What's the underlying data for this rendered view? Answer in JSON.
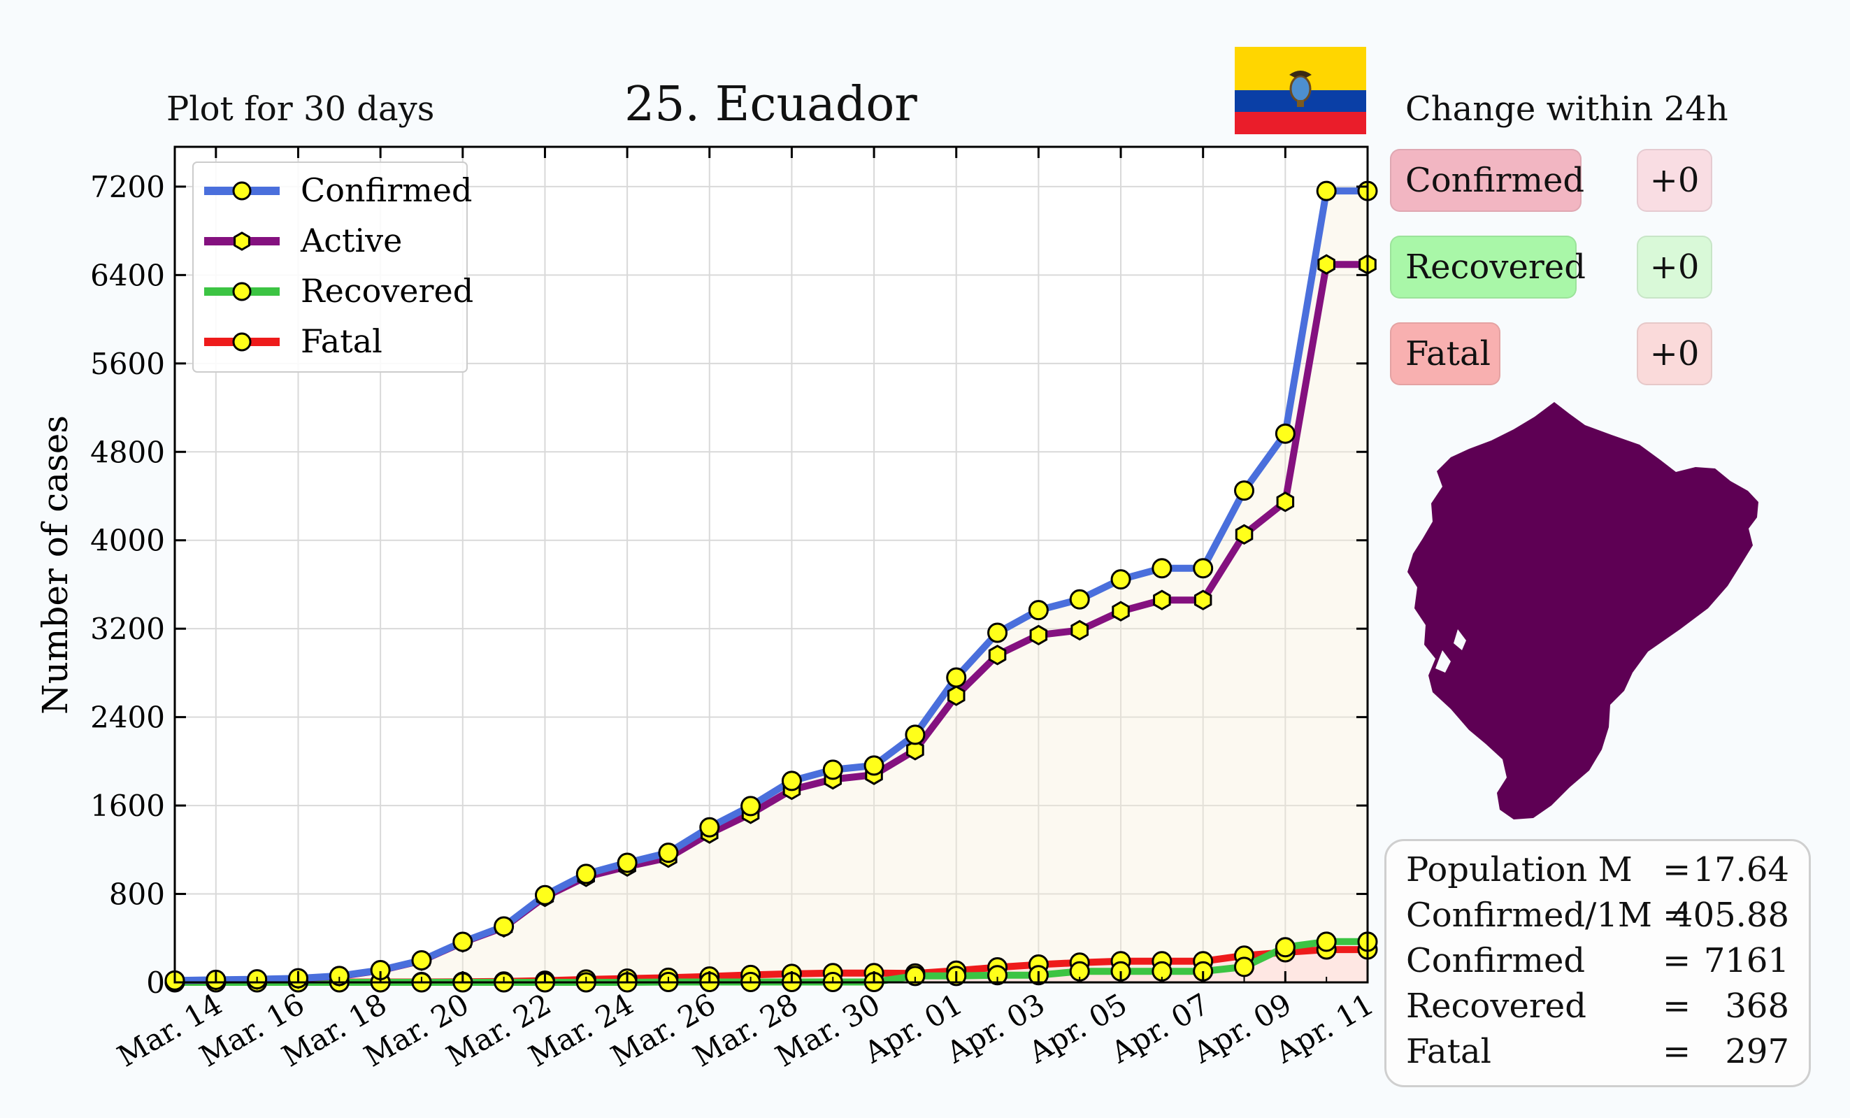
{
  "header": {
    "plot_note": "Plot for 30 days",
    "title": "25.  Ecuador",
    "change_title": "Change within 24h"
  },
  "flag": {
    "colors": [
      "#ffd600",
      "#0a3fa6",
      "#ea1d2a"
    ],
    "icon": "ecuador-flag-icon"
  },
  "change": {
    "confirmed_label": "Confirmed",
    "confirmed_value": "+0",
    "recovered_label": "Recovered",
    "recovered_value": "+0",
    "fatal_label": "Fatal",
    "fatal_value": "+0"
  },
  "map": {
    "icon": "ecuador-map-icon",
    "color": "#5e0054"
  },
  "stats": [
    {
      "key": "Population M",
      "value": "17.64"
    },
    {
      "key": "Confirmed/1M",
      "value": "405.88"
    },
    {
      "key": "Confirmed",
      "value": "7161"
    },
    {
      "key": "Recovered",
      "value": "368"
    },
    {
      "key": "Fatal",
      "value": "297"
    }
  ],
  "stats_eq": "=",
  "chart_data": {
    "type": "line",
    "title": "25.  Ecuador",
    "ylabel": "Number of cases",
    "xlabel": "",
    "ylim": [
      0,
      7560
    ],
    "yticks": [
      0,
      800,
      1600,
      2400,
      3200,
      4000,
      4800,
      5600,
      6400,
      7200
    ],
    "grid": true,
    "legend_position": "top-left",
    "x": [
      "Mar. 13",
      "Mar. 14",
      "Mar. 15",
      "Mar. 16",
      "Mar. 17",
      "Mar. 18",
      "Mar. 19",
      "Mar. 20",
      "Mar. 21",
      "Mar. 22",
      "Mar. 23",
      "Mar. 24",
      "Mar. 25",
      "Mar. 26",
      "Mar. 27",
      "Mar. 28",
      "Mar. 29",
      "Mar. 30",
      "Mar. 31",
      "Apr. 01",
      "Apr. 02",
      "Apr. 03",
      "Apr. 04",
      "Apr. 05",
      "Apr. 06",
      "Apr. 07",
      "Apr. 08",
      "Apr. 09",
      "Apr. 10",
      "Apr. 11"
    ],
    "xtick_labels": [
      "Mar. 14",
      "Mar. 16",
      "Mar. 18",
      "Mar. 20",
      "Mar. 22",
      "Mar. 24",
      "Mar. 26",
      "Mar. 28",
      "Mar. 30",
      "Apr. 01",
      "Apr. 03",
      "Apr. 05",
      "Apr. 07",
      "Apr. 09",
      "Apr. 11"
    ],
    "series": [
      {
        "name": "Confirmed",
        "color": "#4a6fdc",
        "marker": "circle",
        "values": [
          17,
          23,
          28,
          37,
          58,
          111,
          199,
          367,
          506,
          789,
          981,
          1082,
          1173,
          1403,
          1595,
          1823,
          1924,
          1962,
          2240,
          2758,
          3163,
          3368,
          3465,
          3646,
          3747,
          3747,
          4450,
          4965,
          7161,
          7161
        ]
      },
      {
        "name": "Active",
        "color": "#84117f",
        "marker": "hexagon",
        "values": [
          15,
          20,
          25,
          34,
          55,
          108,
          196,
          362,
          498,
          774,
          955,
          1048,
          1128,
          1347,
          1525,
          1743,
          1837,
          1878,
          2101,
          2594,
          2962,
          3142,
          3186,
          3358,
          3459,
          3459,
          4053,
          4348,
          6496,
          6496
        ]
      },
      {
        "name": "Recovered",
        "color": "#3cc443",
        "marker": "circle",
        "values": [
          0,
          0,
          0,
          0,
          0,
          0,
          0,
          0,
          0,
          0,
          0,
          0,
          3,
          3,
          3,
          3,
          3,
          3,
          58,
          58,
          65,
          65,
          100,
          100,
          100,
          100,
          140,
          318,
          368,
          368
        ]
      },
      {
        "name": "Fatal",
        "color": "#ee1b1b",
        "marker": "circle",
        "values": [
          2,
          3,
          3,
          3,
          3,
          3,
          3,
          5,
          8,
          15,
          26,
          34,
          42,
          53,
          67,
          77,
          84,
          84,
          81,
          106,
          136,
          161,
          179,
          191,
          191,
          191,
          242,
          272,
          297,
          297
        ]
      }
    ]
  }
}
